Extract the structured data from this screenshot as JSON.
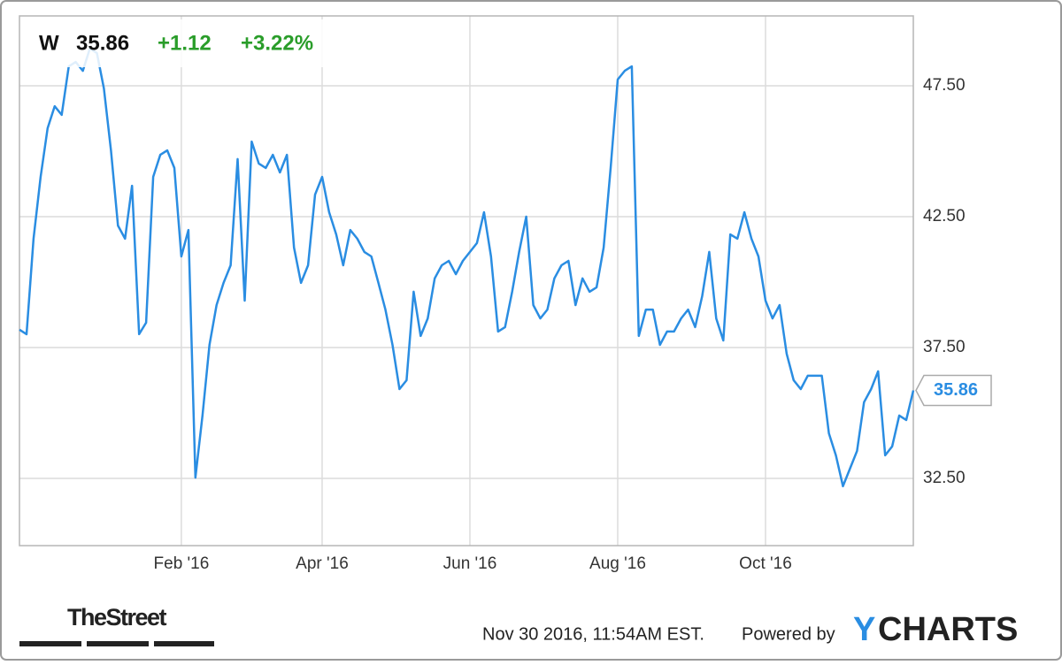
{
  "chart_data": {
    "type": "line",
    "header": {
      "ticker": "W",
      "price": "35.86",
      "change": "+1.12",
      "change_pct": "+3.22%"
    },
    "color": "#2a8de2",
    "values": [
      38.18,
      38.01,
      41.66,
      44.02,
      45.88,
      46.72,
      46.39,
      48.24,
      48.41,
      48.07,
      48.92,
      48.75,
      47.4,
      45.03,
      42.16,
      41.66,
      43.68,
      38.01,
      38.45,
      44.02,
      44.86,
      45.03,
      44.36,
      40.98,
      41.99,
      32.53,
      34.9,
      37.6,
      39.12,
      39.97,
      40.64,
      44.7,
      39.29,
      45.37,
      44.53,
      44.36,
      44.86,
      44.19,
      44.86,
      41.32,
      39.97,
      40.64,
      43.34,
      44.02,
      42.67,
      41.82,
      40.64,
      41.99,
      41.66,
      41.15,
      40.98,
      39.97,
      38.95,
      37.6,
      35.91,
      36.25,
      39.63,
      37.94,
      38.61,
      40.14,
      40.64,
      40.81,
      40.3,
      40.81,
      41.15,
      41.49,
      42.67,
      40.98,
      38.11,
      38.28,
      39.63,
      41.15,
      42.5,
      39.12,
      38.61,
      38.95,
      40.14,
      40.64,
      40.81,
      39.12,
      40.14,
      39.63,
      39.8,
      41.32,
      44.36,
      47.74,
      48.07,
      48.24,
      37.94,
      38.95,
      38.95,
      37.6,
      38.11,
      38.11,
      38.61,
      38.95,
      38.28,
      39.46,
      41.15,
      38.61,
      37.77,
      41.82,
      41.66,
      42.67,
      41.66,
      40.98,
      39.29,
      38.61,
      39.12,
      37.26,
      36.25,
      35.91,
      36.42,
      36.42,
      36.42,
      34.22,
      33.38,
      32.2,
      32.87,
      33.55,
      35.41,
      35.91,
      36.59,
      33.38,
      33.72,
      34.9,
      34.73,
      35.86
    ],
    "xlim": [
      0,
      127
    ],
    "xticks": [
      {
        "value": 23,
        "label": "Feb '16"
      },
      {
        "value": 43,
        "label": "Apr '16"
      },
      {
        "value": 64,
        "label": "Jun '16"
      },
      {
        "value": 85,
        "label": "Aug '16"
      },
      {
        "value": 106,
        "label": "Oct '16"
      }
    ],
    "ylim": [
      29.93,
      50.17
    ],
    "yticks": [
      {
        "value": 32.5,
        "label": "32.50"
      },
      {
        "value": 37.5,
        "label": "37.50"
      },
      {
        "value": 42.5,
        "label": "42.50"
      },
      {
        "value": 47.5,
        "label": "47.50"
      }
    ],
    "grid": true,
    "footer": {
      "source": "TheStreet",
      "timestamp": "Nov 30 2016, 11:54AM EST.",
      "powered": "Powered by",
      "brand_y": "Y",
      "brand_rest": "CHARTS"
    }
  }
}
